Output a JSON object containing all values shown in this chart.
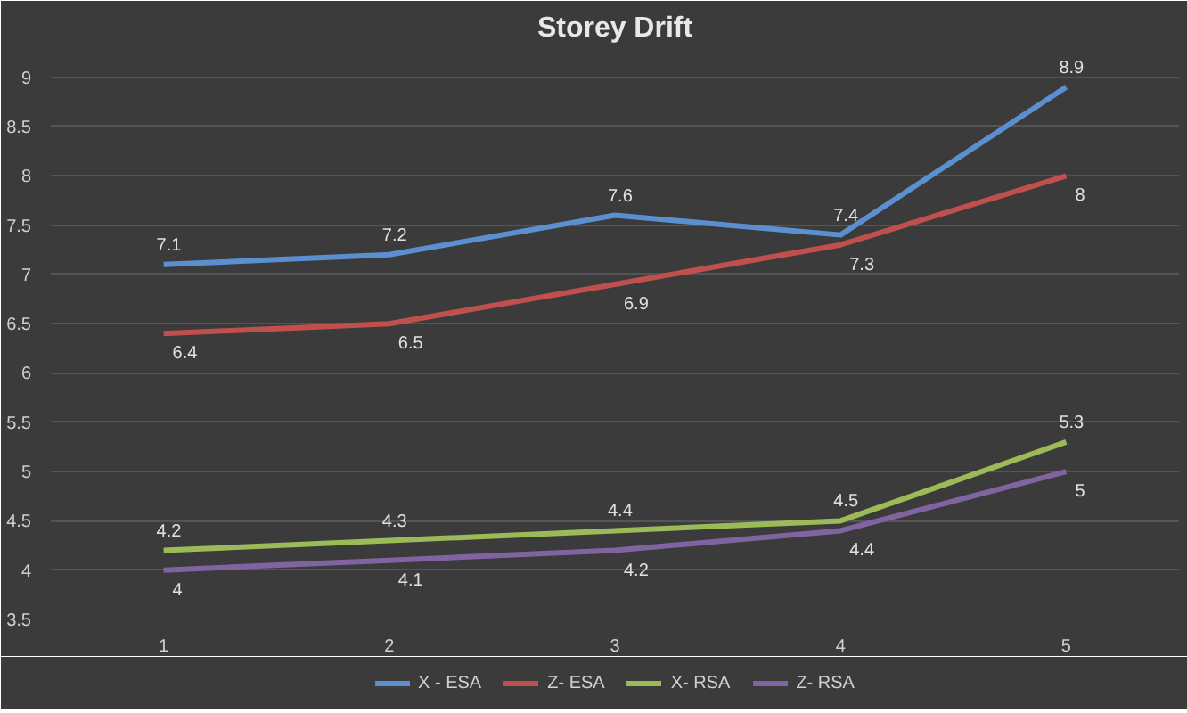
{
  "chart_data": {
    "type": "line",
    "title": "Storey Drift",
    "categories": [
      "1",
      "2",
      "3",
      "4",
      "5"
    ],
    "series": [
      {
        "name": "X - ESA",
        "color": "#5b8fd0",
        "values": [
          7.1,
          7.2,
          7.6,
          7.4,
          8.9
        ]
      },
      {
        "name": "Z- ESA",
        "color": "#c0504d",
        "values": [
          6.4,
          6.5,
          6.9,
          7.3,
          8
        ]
      },
      {
        "name": "X- RSA",
        "color": "#9bbb59",
        "values": [
          4.2,
          4.3,
          4.4,
          4.5,
          5.3
        ]
      },
      {
        "name": "Z- RSA",
        "color": "#8064a2",
        "values": [
          4,
          4.1,
          4.2,
          4.4,
          5
        ]
      }
    ],
    "ylim": [
      3.5,
      9.25
    ],
    "yticks": [
      3.5,
      4,
      4.5,
      5,
      5.5,
      6,
      6.5,
      7,
      7.5,
      8,
      8.5,
      9
    ],
    "grid": "y",
    "legend": "bottom",
    "data_labels": true,
    "marker": "none",
    "line_style": "solid"
  }
}
